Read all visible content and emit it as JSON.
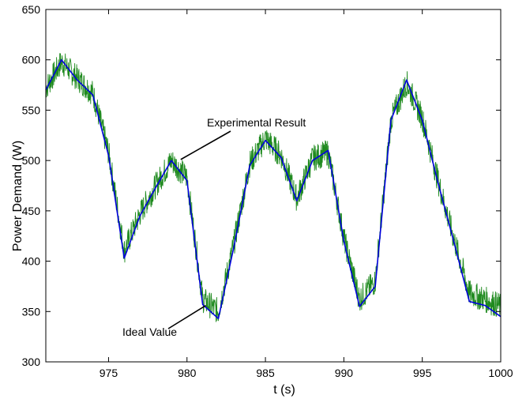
{
  "chart_data": {
    "type": "line",
    "xlabel": "t (s)",
    "ylabel": "Power Demand (W)",
    "xlim": [
      971,
      1000
    ],
    "ylim": [
      300,
      650
    ],
    "xticks": [
      975,
      980,
      985,
      990,
      995,
      1000
    ],
    "yticks": [
      300,
      350,
      400,
      450,
      500,
      550,
      600,
      650
    ],
    "grid": false,
    "series": [
      {
        "name": "Ideal Value",
        "color": "#0000dd",
        "x": [
          971,
          972,
          973,
          974,
          975,
          976,
          977,
          978,
          979,
          980,
          981,
          982,
          983,
          984,
          985,
          986,
          987,
          988,
          989,
          990,
          991,
          992,
          993,
          994,
          995,
          996,
          997,
          998,
          999,
          1000
        ],
        "y": [
          570,
          600,
          580,
          565,
          505,
          403,
          445,
          473,
          500,
          480,
          357,
          343,
          415,
          495,
          520,
          503,
          460,
          500,
          510,
          420,
          355,
          375,
          540,
          580,
          540,
          478,
          420,
          360,
          356,
          345
        ]
      },
      {
        "name": "Experimental Result",
        "color": "#1f8a1f",
        "x": [
          971,
          972,
          973,
          974,
          975,
          976,
          977,
          978,
          979,
          980,
          981,
          982,
          983,
          984,
          985,
          986,
          987,
          988,
          989,
          990,
          991,
          992,
          993,
          994,
          995,
          996,
          997,
          998,
          999,
          1000
        ],
        "y": [
          572,
          598,
          582,
          567,
          508,
          410,
          447,
          475,
          500,
          483,
          362,
          350,
          418,
          497,
          522,
          505,
          462,
          502,
          508,
          423,
          362,
          380,
          540,
          577,
          542,
          480,
          423,
          368,
          362,
          355
        ]
      }
    ],
    "annotations": [
      {
        "text": "Experimental Result",
        "x": 979.6,
        "y": 501
      },
      {
        "text": "Ideal Value",
        "x": 981.2,
        "y": 356
      }
    ]
  }
}
